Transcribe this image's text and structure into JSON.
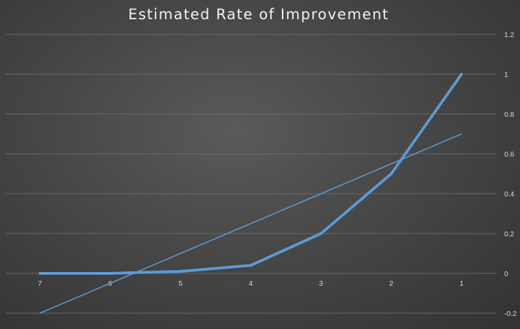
{
  "chart_data": {
    "type": "line",
    "title": "Estimated Rate of Improvement",
    "categories": [
      "7",
      "6",
      "5",
      "4",
      "3",
      "2",
      "1"
    ],
    "series": [
      {
        "values": [
          0,
          0,
          0.01,
          0.04,
          0.2,
          0.5,
          1.0
        ]
      },
      {
        "trendline": "linear",
        "values": [
          -0.2,
          -0.05,
          0.1,
          0.25,
          0.4,
          0.55,
          0.7
        ]
      }
    ],
    "ylim": [
      -0.2,
      1.2
    ],
    "yticks": [
      -0.2,
      0,
      0.2,
      0.4,
      0.6,
      0.8,
      1,
      1.2
    ],
    "ytick_labels": [
      "-0.2",
      "0",
      "0.2",
      "0.4",
      "0.6",
      "0.8",
      "1",
      "1.2"
    ],
    "y_axis_side": "right",
    "grid": true,
    "legend": "none",
    "colors": {
      "series": "#5b9bd5",
      "background": "#474747",
      "grid": "#6a6a6a",
      "text": "#d9d9d9"
    }
  }
}
